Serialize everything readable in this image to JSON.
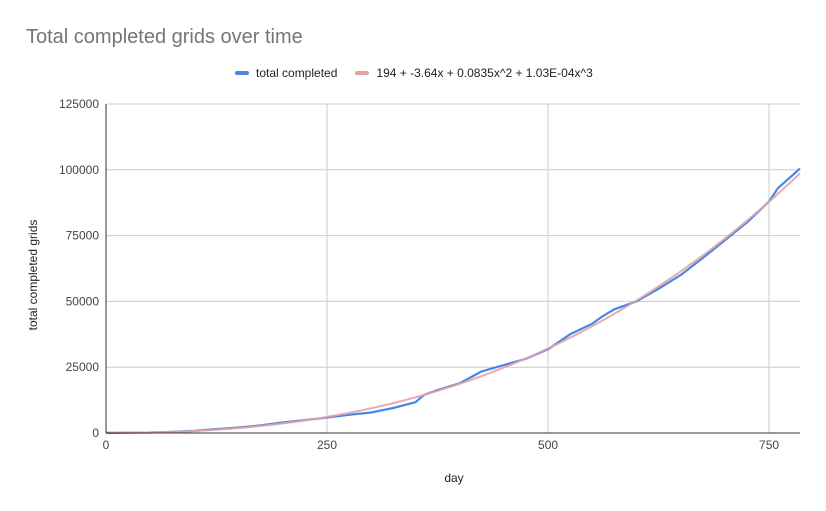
{
  "chart_data": {
    "type": "line",
    "title": "Total completed grids over time",
    "xlabel": "day",
    "ylabel": "total completed grids",
    "xlim": [
      0,
      785
    ],
    "ylim": [
      0,
      125000
    ],
    "x_ticks": [
      0,
      250,
      500,
      750
    ],
    "x_tick_labels": [
      "0",
      "250",
      "500",
      "750"
    ],
    "y_ticks": [
      0,
      25000,
      50000,
      75000,
      100000,
      125000
    ],
    "y_tick_labels": [
      "0",
      "25000",
      "50000",
      "75000",
      "100000",
      "125000"
    ],
    "grid": true,
    "legend": "top",
    "series": [
      {
        "name": "total completed",
        "color": "#4a86e8",
        "x": [
          0,
          25,
          50,
          75,
          100,
          125,
          150,
          175,
          200,
          225,
          250,
          275,
          300,
          325,
          350,
          360,
          375,
          400,
          425,
          450,
          475,
          500,
          525,
          550,
          560,
          575,
          600,
          625,
          650,
          675,
          700,
          725,
          750,
          760,
          775,
          785
        ],
        "y": [
          0,
          100,
          200,
          450,
          800,
          1500,
          2100,
          2900,
          4000,
          4900,
          5900,
          6900,
          7800,
          9500,
          11700,
          14500,
          16300,
          18900,
          23400,
          25800,
          28200,
          31800,
          37500,
          41500,
          44000,
          47000,
          50000,
          54800,
          60000,
          66500,
          73200,
          80000,
          88000,
          93000,
          97500,
          100500
        ]
      },
      {
        "name": "194 + -3.64x + 0.0835x^2 + 1.03E-04x^3",
        "color": "#e6a3a3",
        "coefficients": [
          194,
          -3.64,
          0.0835,
          0.000103
        ]
      }
    ]
  }
}
